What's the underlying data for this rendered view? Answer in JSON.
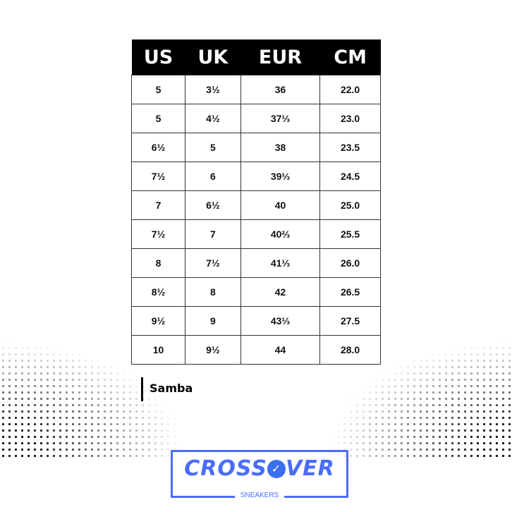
{
  "headers": [
    "US",
    "UK",
    "EUR",
    "CM"
  ],
  "rows": [
    [
      "5",
      "3½",
      "36",
      "22.0"
    ],
    [
      "5",
      "4½",
      "37⅓",
      "23.0"
    ],
    [
      "6½",
      "5",
      "38",
      "23.5"
    ],
    [
      "7½",
      "6",
      "39⅓",
      "24.5"
    ],
    [
      "7",
      "6½",
      "40",
      "25.0"
    ],
    [
      "7½",
      "7",
      "40⅔",
      "25.5"
    ],
    [
      "8",
      "7½",
      "41⅓",
      "26.0"
    ],
    [
      "8½",
      "8",
      "42",
      "26.5"
    ],
    [
      "9½",
      "9",
      "43⅓",
      "27.5"
    ],
    [
      "10",
      "9½",
      "44",
      "28.0"
    ]
  ],
  "model": "Samba",
  "logo": {
    "left": "CROSS",
    "right": "VER",
    "sub": "SNEAKERS",
    "color": "#4a6cf7",
    "badge_icon": "check-badge-icon"
  }
}
